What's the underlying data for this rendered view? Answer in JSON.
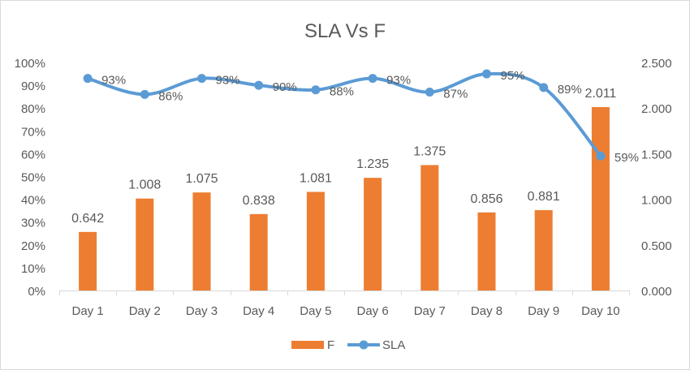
{
  "chart_data": {
    "type": "bar+line",
    "title": "SLA Vs F",
    "categories": [
      "Day 1",
      "Day 2",
      "Day 3",
      "Day 4",
      "Day 5",
      "Day 6",
      "Day 7",
      "Day 8",
      "Day 9",
      "Day 10"
    ],
    "series": [
      {
        "name": "F",
        "type": "bar",
        "axis": "right",
        "color": "#ED7D31",
        "values": [
          0.642,
          1.008,
          1.075,
          0.838,
          1.081,
          1.235,
          1.375,
          0.856,
          0.881,
          2.011
        ],
        "labels": [
          "0.642",
          "1.008",
          "1.075",
          "0.838",
          "1.081",
          "1.235",
          "1.375",
          "0.856",
          "0.881",
          "2.011"
        ]
      },
      {
        "name": "SLA",
        "type": "line",
        "axis": "left",
        "color": "#5B9BD5",
        "values": [
          0.93,
          0.86,
          0.93,
          0.9,
          0.88,
          0.93,
          0.87,
          0.95,
          0.89,
          0.59
        ],
        "labels": [
          "93%",
          "86%",
          "93%",
          "90%",
          "88%",
          "93%",
          "87%",
          "95%",
          "89%",
          "59%"
        ]
      }
    ],
    "y_left": {
      "range": [
        0,
        1
      ],
      "ticks": [
        "0%",
        "10%",
        "20%",
        "30%",
        "40%",
        "50%",
        "60%",
        "70%",
        "80%",
        "90%",
        "100%"
      ]
    },
    "y_right": {
      "range": [
        0,
        2.5
      ],
      "ticks": [
        "0.000",
        "0.500",
        "1.000",
        "1.500",
        "2.000",
        "2.500"
      ]
    },
    "legend": "bottom",
    "grid": false
  }
}
